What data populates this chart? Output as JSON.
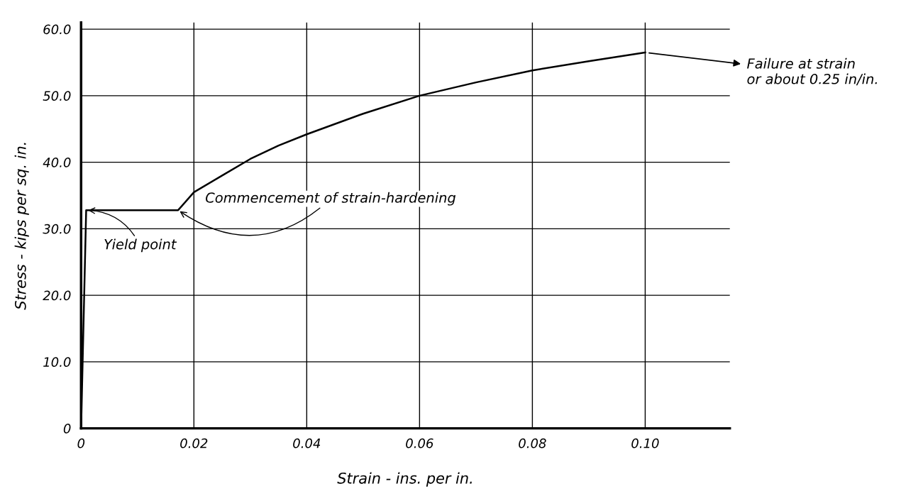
{
  "chart_data": {
    "type": "line",
    "xlabel": "Strain - ins. per in.",
    "ylabel": "Stress - kips per sq. in.",
    "x": [
      0,
      0.0009,
      0.0172,
      0.02,
      0.025,
      0.03,
      0.035,
      0.04,
      0.05,
      0.06,
      0.07,
      0.08,
      0.09,
      0.1
    ],
    "series": [
      {
        "color": "#000000",
        "values": [
          0,
          32.8,
          32.8,
          35.5,
          38,
          40.5,
          42.5,
          44.2,
          47.3,
          50,
          52,
          53.8,
          55.2,
          56.5
        ]
      }
    ],
    "xlim": [
      0,
      0.115
    ],
    "ylim": [
      0,
      61
    ],
    "xticks": [
      {
        "value": 0,
        "label": "0"
      },
      0.02,
      0.04,
      0.06,
      0.08,
      {
        "value": 0.1,
        "label": "0.10"
      }
    ],
    "yticks": [
      0,
      {
        "value": 10,
        "label": "10.0"
      },
      {
        "value": 20,
        "label": "20.0"
      },
      {
        "value": 30,
        "label": "30.0"
      },
      {
        "value": 40,
        "label": "40.0"
      },
      {
        "value": 50,
        "label": "50.0"
      },
      {
        "value": 60,
        "label": "60.0"
      }
    ],
    "grid": true,
    "marker": "none",
    "line_style": "solid",
    "annotations": [
      {
        "text": "Yield point",
        "x": 0.0009,
        "y": 32.8
      },
      {
        "text": "Commencement of strain-hardening",
        "x": 0.0172,
        "y": 32.8
      },
      {
        "text": "Failure at strain\nor about 0.25 in/in.",
        "x": 0.1,
        "y": 56.5
      }
    ]
  }
}
